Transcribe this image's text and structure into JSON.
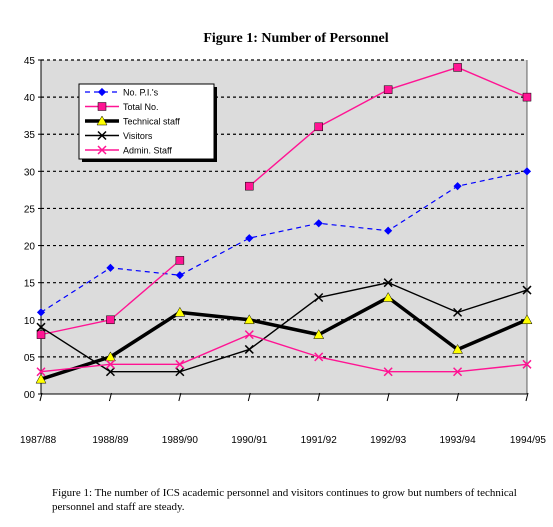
{
  "chart_data": {
    "type": "line",
    "title": "Figure 1: Number of Personnel",
    "xlabel": "",
    "ylabel": "",
    "categories": [
      "1987/88",
      "1988/89",
      "1989/90",
      "1990/91",
      "1991/92",
      "1992/93",
      "1993/94",
      "1994/95"
    ],
    "ylim": [
      0,
      45
    ],
    "yticks": [
      0,
      5,
      10,
      15,
      20,
      25,
      30,
      35,
      40,
      45
    ],
    "ytick_labels": [
      "00",
      "05",
      "10",
      "15",
      "20",
      "25",
      "30",
      "35",
      "40",
      "45"
    ],
    "grid": "horizontal dashed",
    "legend_position": "top-left",
    "series": [
      {
        "name": "No. P.I.'s",
        "color": "#0000ff",
        "marker": "diamond",
        "line": "dashed",
        "values": [
          11,
          17,
          16,
          21,
          23,
          22,
          28,
          30
        ]
      },
      {
        "name": "Total No.",
        "color": "#ff1493",
        "marker": "square",
        "line": "solid",
        "values": [
          8,
          10,
          18,
          28,
          36,
          41,
          44,
          40
        ]
      },
      {
        "name": "Technical staff",
        "color": "#000000",
        "marker": "triangle",
        "line": "thick",
        "values": [
          2,
          5,
          11,
          10,
          8,
          13,
          6,
          10
        ]
      },
      {
        "name": "Visitors",
        "color": "#000000",
        "marker": "x",
        "line": "solid",
        "values": [
          9,
          3,
          3,
          6,
          13,
          15,
          11,
          14
        ]
      },
      {
        "name": "Admin. Staff",
        "color": "#ff1493",
        "marker": "x",
        "line": "solid",
        "values": [
          3,
          4,
          4,
          8,
          5,
          3,
          3,
          4
        ]
      }
    ]
  },
  "caption": "Figure 1:  The number of ICS academic personnel and visitors continues to grow but numbers of technical personnel and staff are steady."
}
